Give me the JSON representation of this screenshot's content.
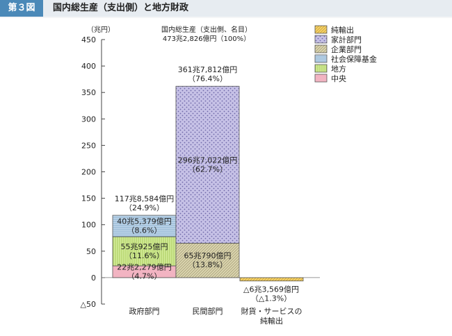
{
  "header": {
    "badge": "第３図",
    "title": "国内総生産（支出側）と地方財政"
  },
  "chart_data": {
    "type": "bar",
    "stacked": true,
    "unit_label": "（兆円）",
    "ylim": [
      -50,
      450
    ],
    "yticks": [
      -50,
      0,
      50,
      100,
      150,
      200,
      250,
      300,
      350,
      400,
      450
    ],
    "ytick_labels": [
      "△50",
      "0",
      "50",
      "100",
      "150",
      "200",
      "250",
      "300",
      "350",
      "400",
      "450"
    ],
    "categories": [
      {
        "label_lines": [
          "政府部門"
        ]
      },
      {
        "label_lines": [
          "民間部門"
        ]
      },
      {
        "label_lines": [
          "財貨・サービスの",
          "純輸出"
        ]
      }
    ],
    "series": [
      {
        "name": "純輸出",
        "key": "net_exports",
        "color": "#f6d36a",
        "pattern": "hatch"
      },
      {
        "name": "家計部門",
        "key": "household",
        "color": "#c6c1e6",
        "pattern": "dots"
      },
      {
        "name": "企業部門",
        "key": "corporate",
        "color": "#dcd6b0",
        "pattern": "hatch"
      },
      {
        "name": "社会保障基金",
        "key": "social_security",
        "color": "#bfd6ea",
        "pattern": "hlines"
      },
      {
        "name": "地方",
        "key": "local",
        "color": "#d4ec9a",
        "pattern": "vlines"
      },
      {
        "name": "中央",
        "key": "central",
        "color": "#f2b4c2",
        "pattern": "solid"
      }
    ],
    "segments": [
      {
        "category": 0,
        "series": "central",
        "value": 22.2279,
        "label": [
          "22兆2,279億円",
          "（4.7%）"
        ]
      },
      {
        "category": 0,
        "series": "local",
        "value": 55.0925,
        "label": [
          "55兆925億円",
          "（11.6%）"
        ]
      },
      {
        "category": 0,
        "series": "social_security",
        "value": 40.5379,
        "label": [
          "40兆5,379億円",
          "（8.6%）"
        ]
      },
      {
        "category": 1,
        "series": "corporate",
        "value": 65.079,
        "label": [
          "65兆790億円",
          "（13.8%）"
        ]
      },
      {
        "category": 1,
        "series": "household",
        "value": 296.7022,
        "label": [
          "296兆7,022億円",
          "（62.7%）"
        ]
      },
      {
        "category": 2,
        "series": "net_exports",
        "value": -6.3569,
        "label": [
          "△6兆3,569億円",
          "（△1.3%）"
        ]
      }
    ],
    "totals": [
      {
        "category": 0,
        "value": 117.8584,
        "label": [
          "117兆8,584億円",
          "（24.9%）"
        ]
      },
      {
        "category": 1,
        "value": 361.7812,
        "label": [
          "361兆7,812億円",
          "（76.4%）"
        ]
      }
    ],
    "grand_total": {
      "value": 473.2826,
      "label": [
        "国内総生産（支出側、名目）",
        "473兆2,826億円（100%）"
      ]
    },
    "legend_position": "top-right",
    "grid": false
  }
}
